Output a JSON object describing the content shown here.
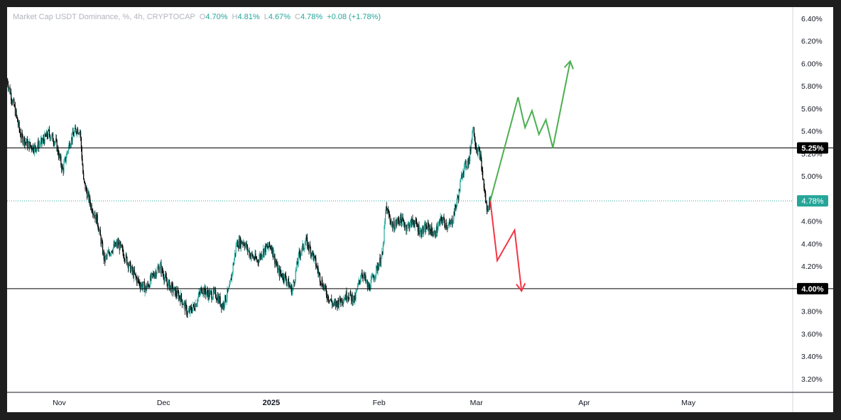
{
  "legend": {
    "title": "Market Cap USDT Dominance, %, 4h, CRYPTOCAP",
    "open_label": "O",
    "open": "4.70%",
    "high_label": "H",
    "high": "4.81%",
    "low_label": "L",
    "low": "4.67%",
    "close_label": "C",
    "close": "4.78%",
    "change": "+0.08 (+1.78%)"
  },
  "chart_data": {
    "type": "line",
    "title": "Market Cap USDT Dominance, %, 4h, CRYPTOCAP",
    "xlabel": "",
    "ylabel": "",
    "ylim": [
      3.08,
      6.5
    ],
    "y_ticks": [
      "6.40%",
      "6.20%",
      "6.00%",
      "5.80%",
      "5.60%",
      "5.40%",
      "5.20%",
      "5.00%",
      "4.80%",
      "4.60%",
      "4.40%",
      "4.20%",
      "4.00%",
      "3.80%",
      "3.60%",
      "3.40%",
      "3.20%"
    ],
    "y_tick_values": [
      6.4,
      6.2,
      6.0,
      5.8,
      5.6,
      5.4,
      5.2,
      5.0,
      4.8,
      4.6,
      4.4,
      4.2,
      4.0,
      3.8,
      3.6,
      3.4,
      3.2
    ],
    "x_ticks": [
      {
        "label": "Nov",
        "date": "2024-11-01",
        "bold": false
      },
      {
        "label": "Dec",
        "date": "2024-12-01",
        "bold": false
      },
      {
        "label": "2025",
        "date": "2025-01-01",
        "bold": true
      },
      {
        "label": "Feb",
        "date": "2025-02-01",
        "bold": false
      },
      {
        "label": "Mar",
        "date": "2025-03-01",
        "bold": false
      },
      {
        "label": "Apr",
        "date": "2025-04-01",
        "bold": false
      },
      {
        "label": "May",
        "date": "2025-05-01",
        "bold": false
      }
    ],
    "xlim": [
      "2024-10-17",
      "2025-05-31"
    ],
    "series": [
      {
        "values": [
          [
            "2024-10-17",
            5.85
          ],
          [
            "2024-10-19",
            5.62
          ],
          [
            "2024-10-21",
            5.35
          ],
          [
            "2024-10-23",
            5.28
          ],
          [
            "2024-10-25",
            5.25
          ],
          [
            "2024-10-27",
            5.3
          ],
          [
            "2024-10-29",
            5.38
          ],
          [
            "2024-10-31",
            5.3
          ],
          [
            "2024-11-02",
            5.05
          ],
          [
            "2024-11-04",
            5.3
          ],
          [
            "2024-11-06",
            5.42
          ],
          [
            "2024-11-07",
            5.4
          ],
          [
            "2024-11-08",
            4.95
          ],
          [
            "2024-11-10",
            4.75
          ],
          [
            "2024-11-12",
            4.6
          ],
          [
            "2024-11-14",
            4.25
          ],
          [
            "2024-11-16",
            4.35
          ],
          [
            "2024-11-18",
            4.4
          ],
          [
            "2024-11-20",
            4.28
          ],
          [
            "2024-11-22",
            4.15
          ],
          [
            "2024-11-24",
            4.05
          ],
          [
            "2024-11-26",
            4.0
          ],
          [
            "2024-11-28",
            4.12
          ],
          [
            "2024-11-30",
            4.2
          ],
          [
            "2024-12-02",
            4.05
          ],
          [
            "2024-12-04",
            3.98
          ],
          [
            "2024-12-06",
            3.92
          ],
          [
            "2024-12-08",
            3.78
          ],
          [
            "2024-12-10",
            3.85
          ],
          [
            "2024-12-12",
            4.0
          ],
          [
            "2024-12-14",
            3.95
          ],
          [
            "2024-12-16",
            3.95
          ],
          [
            "2024-12-18",
            3.85
          ],
          [
            "2024-12-20",
            4.0
          ],
          [
            "2024-12-22",
            4.4
          ],
          [
            "2024-12-24",
            4.42
          ],
          [
            "2024-12-26",
            4.3
          ],
          [
            "2024-12-28",
            4.25
          ],
          [
            "2024-12-30",
            4.35
          ],
          [
            "2025-01-01",
            4.38
          ],
          [
            "2025-01-03",
            4.15
          ],
          [
            "2025-01-05",
            4.1
          ],
          [
            "2025-01-07",
            3.98
          ],
          [
            "2025-01-09",
            4.3
          ],
          [
            "2025-01-11",
            4.42
          ],
          [
            "2025-01-13",
            4.3
          ],
          [
            "2025-01-15",
            4.1
          ],
          [
            "2025-01-17",
            3.95
          ],
          [
            "2025-01-19",
            3.85
          ],
          [
            "2025-01-21",
            3.9
          ],
          [
            "2025-01-23",
            3.95
          ],
          [
            "2025-01-25",
            3.9
          ],
          [
            "2025-01-27",
            4.15
          ],
          [
            "2025-01-29",
            4.0
          ],
          [
            "2025-01-31",
            4.15
          ],
          [
            "2025-02-02",
            4.3
          ],
          [
            "2025-02-03",
            4.72
          ],
          [
            "2025-02-05",
            4.55
          ],
          [
            "2025-02-07",
            4.62
          ],
          [
            "2025-02-09",
            4.55
          ],
          [
            "2025-02-11",
            4.6
          ],
          [
            "2025-02-13",
            4.5
          ],
          [
            "2025-02-15",
            4.55
          ],
          [
            "2025-02-17",
            4.48
          ],
          [
            "2025-02-19",
            4.62
          ],
          [
            "2025-02-21",
            4.55
          ],
          [
            "2025-02-22",
            4.6
          ],
          [
            "2025-02-24",
            4.85
          ],
          [
            "2025-02-25",
            5.05
          ],
          [
            "2025-02-27",
            5.15
          ],
          [
            "2025-02-28",
            5.45
          ],
          [
            "2025-03-01",
            5.25
          ],
          [
            "2025-03-02",
            5.2
          ],
          [
            "2025-03-03",
            4.95
          ],
          [
            "2025-03-04",
            4.7
          ],
          [
            "2025-03-05",
            4.78
          ]
        ]
      }
    ],
    "horizontal_levels": [
      5.25,
      4.0
    ],
    "last_value": 4.78,
    "projections": [
      {
        "name": "bullish",
        "color": "#4caf50",
        "points": [
          [
            "2025-03-05",
            4.78
          ],
          [
            "2025-03-13",
            5.7
          ],
          [
            "2025-03-15",
            5.43
          ],
          [
            "2025-03-17",
            5.58
          ],
          [
            "2025-03-19",
            5.37
          ],
          [
            "2025-03-21",
            5.5
          ],
          [
            "2025-03-23",
            5.25
          ],
          [
            "2025-03-28",
            6.02
          ]
        ]
      },
      {
        "name": "bearish",
        "color": "#f23645",
        "points": [
          [
            "2025-03-05",
            4.78
          ],
          [
            "2025-03-07",
            4.25
          ],
          [
            "2025-03-12",
            4.52
          ],
          [
            "2025-03-14",
            3.98
          ]
        ]
      }
    ],
    "grid": false,
    "colors": {
      "up": "#26a69a",
      "down": "#000000",
      "level_line": "#000000",
      "last_price_bg": "#26a69a",
      "level_label_bg": "#000000"
    }
  }
}
